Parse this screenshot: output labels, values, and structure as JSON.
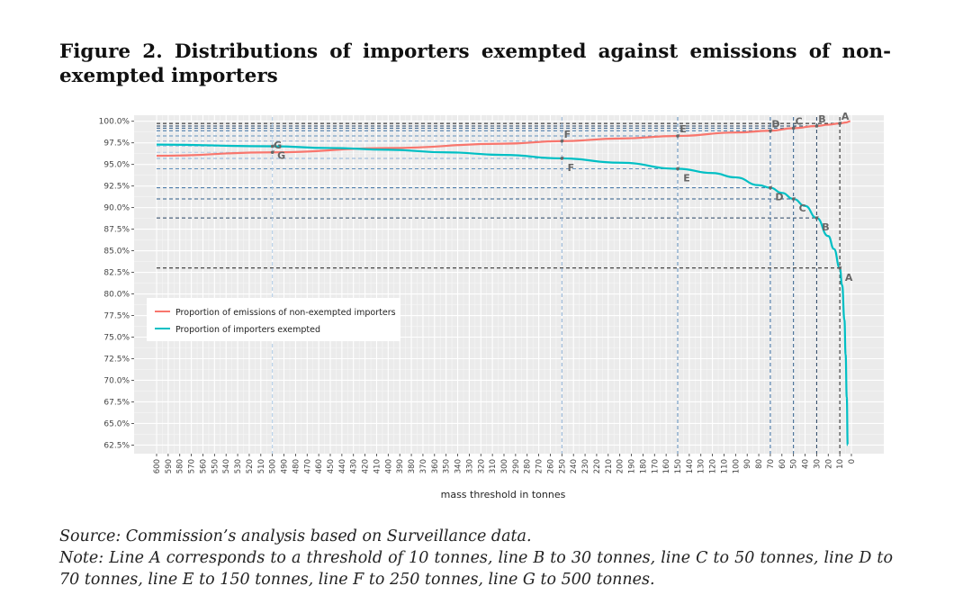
{
  "figure": {
    "title": "Figure 2. Distributions of importers exempted against emissions of non-exempted importers",
    "source": "Source: Commission’s analysis based on Surveillance data.",
    "note": "Note: Line A corresponds to a threshold of 10 tonnes, line B to 30 tonnes, line C to 50 tonnes, line D to 70 tonnes, line E to 150 tonnes, line F to 250 tonnes, line G to 500 tonnes."
  },
  "chart_data": {
    "type": "line",
    "title": "",
    "xlabel": "mass threshold in tonnes",
    "ylabel": "",
    "x_reversed": true,
    "xlim": [
      600,
      0
    ],
    "ylim": [
      61.5,
      100.7
    ],
    "x_ticks": [
      600,
      590,
      580,
      570,
      560,
      550,
      540,
      530,
      520,
      510,
      500,
      490,
      480,
      470,
      460,
      450,
      440,
      430,
      420,
      410,
      400,
      390,
      380,
      370,
      360,
      350,
      340,
      330,
      320,
      310,
      300,
      290,
      280,
      270,
      260,
      250,
      240,
      230,
      220,
      210,
      200,
      190,
      180,
      170,
      160,
      150,
      140,
      130,
      120,
      110,
      100,
      90,
      80,
      70,
      60,
      50,
      40,
      30,
      20,
      10,
      0
    ],
    "y_ticks": [
      62.5,
      65.0,
      67.5,
      70.0,
      72.5,
      75.0,
      77.5,
      80.0,
      82.5,
      85.0,
      87.5,
      90.0,
      92.5,
      95.0,
      97.5,
      100.0
    ],
    "y_tick_labels": [
      "62.5%",
      "65.0%",
      "67.5%",
      "70.0%",
      "72.5%",
      "75.0%",
      "77.5%",
      "80.0%",
      "82.5%",
      "85.0%",
      "87.5%",
      "90.0%",
      "92.5%",
      "95.0%",
      "97.5%",
      "100.0%"
    ],
    "legend": [
      "Proportion of emissions of non-exempted importers",
      "Proportion of importers exempted"
    ],
    "legend_position": "left-middle",
    "series": [
      {
        "name": "Proportion of emissions of non-exempted importers",
        "color": "#F8766D",
        "points": [
          [
            600,
            96.0
          ],
          [
            500,
            96.4
          ],
          [
            400,
            96.9
          ],
          [
            300,
            97.4
          ],
          [
            250,
            97.7
          ],
          [
            200,
            98.0
          ],
          [
            150,
            98.3
          ],
          [
            100,
            98.7
          ],
          [
            70,
            98.9
          ],
          [
            50,
            99.2
          ],
          [
            30,
            99.45
          ],
          [
            20,
            99.6
          ],
          [
            10,
            99.75
          ],
          [
            5,
            99.85
          ],
          [
            1,
            100.0
          ]
        ]
      },
      {
        "name": "Proportion of importers exempted",
        "color": "#00BFC4",
        "points": [
          [
            600,
            97.3
          ],
          [
            500,
            97.1
          ],
          [
            450,
            96.9
          ],
          [
            400,
            96.7
          ],
          [
            350,
            96.4
          ],
          [
            300,
            96.1
          ],
          [
            250,
            95.7
          ],
          [
            200,
            95.2
          ],
          [
            150,
            94.5
          ],
          [
            120,
            94.0
          ],
          [
            100,
            93.5
          ],
          [
            80,
            92.6
          ],
          [
            70,
            92.3
          ],
          [
            60,
            91.7
          ],
          [
            50,
            91.0
          ],
          [
            40,
            90.2
          ],
          [
            30,
            88.8
          ],
          [
            20,
            86.7
          ],
          [
            15,
            85.2
          ],
          [
            10,
            83.0
          ],
          [
            8,
            81.0
          ],
          [
            6,
            77.0
          ],
          [
            5,
            73.0
          ],
          [
            4,
            68.0
          ],
          [
            3.2,
            62.5
          ]
        ]
      }
    ],
    "markers": [
      {
        "label": "A",
        "threshold": 10,
        "emissions": 99.75,
        "exempted": 83.0
      },
      {
        "label": "B",
        "threshold": 30,
        "emissions": 99.45,
        "exempted": 88.8
      },
      {
        "label": "C",
        "threshold": 50,
        "emissions": 99.2,
        "exempted": 91.0
      },
      {
        "label": "D",
        "threshold": 70,
        "emissions": 98.9,
        "exempted": 92.3
      },
      {
        "label": "E",
        "threshold": 150,
        "emissions": 98.3,
        "exempted": 94.5
      },
      {
        "label": "F",
        "threshold": 250,
        "emissions": 97.7,
        "exempted": 95.7
      },
      {
        "label": "G",
        "threshold": 500,
        "emissions": 96.4,
        "exempted": 97.1
      }
    ],
    "marker_line_colors": {
      "A": "#1a1a1a",
      "B": "#243f5e",
      "C": "#2f5d8a",
      "D": "#3a6fa3",
      "E": "#5f8fbd",
      "F": "#8eb1d6",
      "G": "#aecbe6"
    }
  }
}
